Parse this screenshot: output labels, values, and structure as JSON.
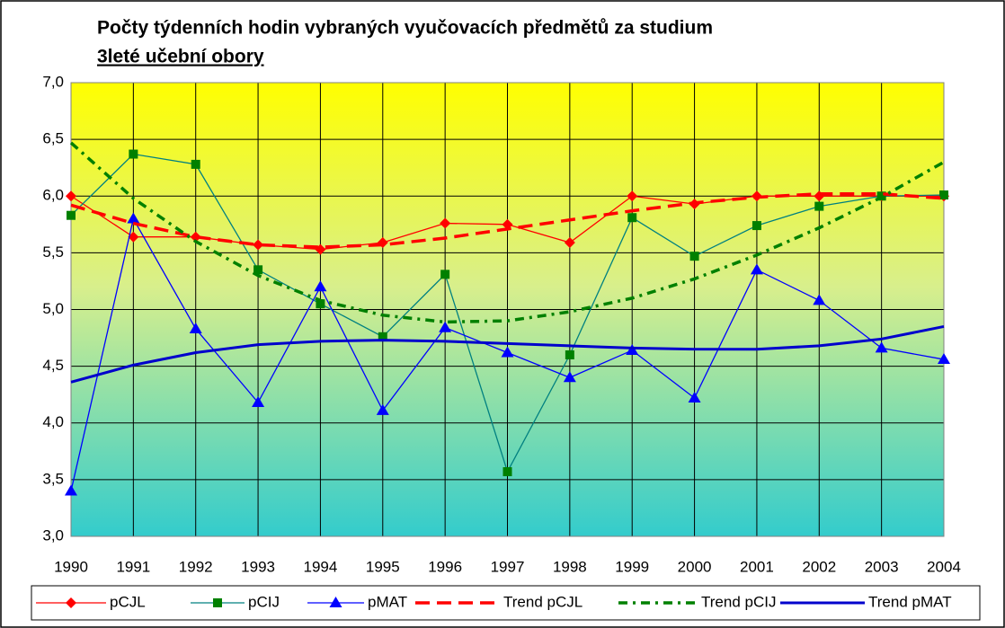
{
  "chart_data": {
    "type": "line",
    "title": "Počty týdenních hodin vybraných vyučovacích předmětů za studium",
    "subtitle": "3leté učební obory",
    "categories": [
      "1990",
      "1991",
      "1992",
      "1993",
      "1994",
      "1995",
      "1996",
      "1997",
      "1998",
      "1999",
      "2000",
      "2001",
      "2002",
      "2003",
      "2004"
    ],
    "ylim": [
      3,
      7
    ],
    "yticks": [
      {
        "value": 3,
        "label": "3,0"
      },
      {
        "value": 3.5,
        "label": "3,5"
      },
      {
        "value": 4,
        "label": "4,0"
      },
      {
        "value": 4.5,
        "label": "4,5"
      },
      {
        "value": 5,
        "label": "5,0"
      },
      {
        "value": 5.5,
        "label": "5,5"
      },
      {
        "value": 6,
        "label": "6,0"
      },
      {
        "value": 6.5,
        "label": "6,5"
      },
      {
        "value": 7,
        "label": "7,0"
      }
    ],
    "grid": true,
    "series": [
      {
        "name": "pCJL",
        "color": "#ff0000",
        "marker": "diamond",
        "style": "solid",
        "values": [
          6.0,
          5.64,
          5.64,
          5.57,
          5.53,
          5.59,
          5.76,
          5.75,
          5.59,
          6.0,
          5.93,
          6.0,
          6.0,
          6.0,
          6.0
        ]
      },
      {
        "name": "pCIJ",
        "color": "#008080",
        "marker": "square",
        "marker_color": "#008000",
        "style": "solid",
        "values": [
          5.83,
          6.37,
          6.28,
          5.35,
          5.05,
          4.76,
          5.31,
          3.57,
          4.6,
          5.81,
          5.47,
          5.74,
          5.91,
          6.0,
          6.01
        ]
      },
      {
        "name": "pMAT",
        "color": "#0000ff",
        "marker": "triangle",
        "style": "solid",
        "values": [
          3.4,
          5.8,
          4.83,
          4.18,
          5.2,
          4.11,
          4.84,
          4.62,
          4.4,
          4.64,
          4.22,
          5.35,
          5.08,
          4.66,
          4.56
        ]
      },
      {
        "name": "Trend pCJL",
        "color": "#ff0000",
        "style": "dashed",
        "values": [
          5.92,
          5.76,
          5.64,
          5.57,
          5.55,
          5.57,
          5.63,
          5.71,
          5.79,
          5.87,
          5.94,
          5.99,
          6.02,
          6.02,
          5.98
        ]
      },
      {
        "name": "Trend pCIJ",
        "color": "#008000",
        "style": "dotted",
        "values": [
          6.47,
          5.98,
          5.6,
          5.3,
          5.08,
          4.95,
          4.89,
          4.9,
          4.98,
          5.1,
          5.27,
          5.48,
          5.72,
          5.99,
          6.3
        ]
      },
      {
        "name": "Trend pMAT",
        "color": "#0000cc",
        "style": "thick",
        "values": [
          4.36,
          4.51,
          4.62,
          4.69,
          4.72,
          4.73,
          4.72,
          4.7,
          4.68,
          4.66,
          4.65,
          4.65,
          4.68,
          4.74,
          4.85
        ]
      }
    ]
  }
}
